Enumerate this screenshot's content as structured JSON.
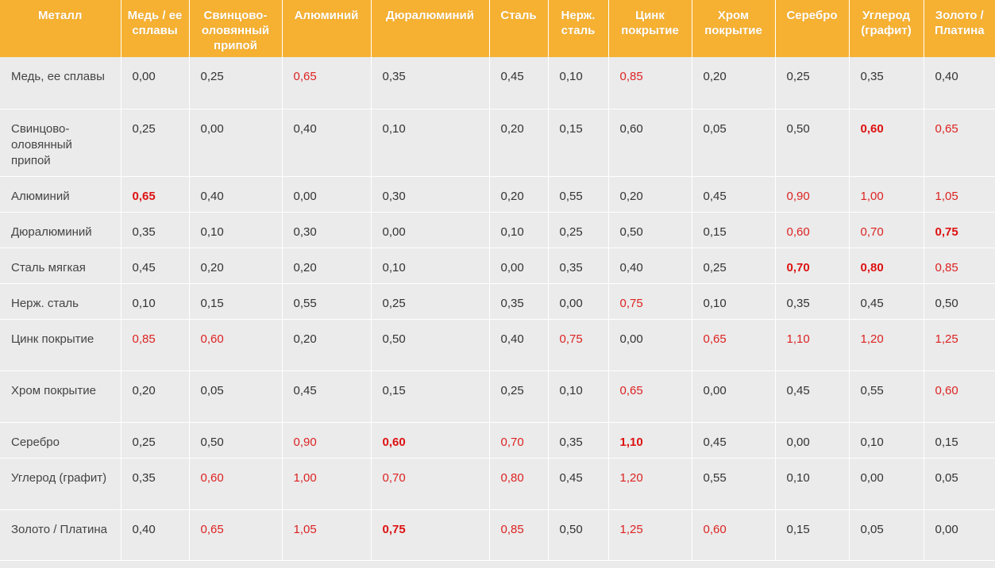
{
  "table": {
    "headers": [
      "Металл",
      "Медь / ее сплавы",
      "Свинцово-оловянный припой",
      "Алюминий",
      "Дюралюминий",
      "Сталь",
      "Нерж. сталь",
      "Цинк покрытие",
      "Хром покрытие",
      "Серебро",
      "Углерод (графит)",
      "Золото / Платина"
    ],
    "rows": [
      {
        "metal": "Медь, ее сплавы",
        "values": [
          "0,00",
          "0,25",
          "0,65",
          "0,35",
          "0,45",
          "0,10",
          "0,85",
          "0,20",
          "0,25",
          "0,35",
          "0,40"
        ]
      },
      {
        "metal": "Свинцово-оловянный припой",
        "values": [
          "0,25",
          "0,00",
          "0,40",
          "0,10",
          "0,20",
          "0,15",
          "0,60",
          "0,05",
          "0,50",
          "0,60",
          "0,65"
        ]
      },
      {
        "metal": "Алюминий",
        "values": [
          "0,65",
          "0,40",
          "0,00",
          "0,30",
          "0,20",
          "0,55",
          "0,20",
          "0,45",
          "0,90",
          "1,00",
          "1,05"
        ]
      },
      {
        "metal": "Дюралюминий",
        "values": [
          "0,35",
          "0,10",
          "0,30",
          "0,00",
          "0,10",
          "0,25",
          "0,50",
          "0,15",
          "0,60",
          "0,70",
          "0,75"
        ]
      },
      {
        "metal": "Сталь мягкая",
        "values": [
          "0,45",
          "0,20",
          "0,20",
          "0,10",
          "0,00",
          "0,35",
          "0,40",
          "0,25",
          "0,70",
          "0,80",
          "0,85"
        ]
      },
      {
        "metal": "Нерж. сталь",
        "values": [
          "0,10",
          "0,15",
          "0,55",
          "0,25",
          "0,35",
          "0,00",
          "0,75",
          "0,10",
          "0,35",
          "0,45",
          "0,50"
        ]
      },
      {
        "metal": "Цинк покрытие",
        "values": [
          "0,85",
          "0,60",
          "0,20",
          "0,50",
          "0,40",
          "0,75",
          "0,00",
          "0,65",
          "1,10",
          "1,20",
          "1,25"
        ]
      },
      {
        "metal": "Хром покрытие",
        "values": [
          "0,20",
          "0,05",
          "0,45",
          "0,15",
          "0,25",
          "0,10",
          "0,65",
          "0,00",
          "0,45",
          "0,55",
          "0,60"
        ]
      },
      {
        "metal": "Серебро",
        "values": [
          "0,25",
          "0,50",
          "0,90",
          "0,60",
          "0,70",
          "0,35",
          "1,10",
          "0,45",
          "0,00",
          "0,10",
          "0,15"
        ]
      },
      {
        "metal": "Углерод (графит)",
        "values": [
          "0,35",
          "0,60",
          "1,00",
          "0,70",
          "0,80",
          "0,45",
          "1,20",
          "0,55",
          "0,10",
          "0,00",
          "0,05"
        ]
      },
      {
        "metal": "Золото / Платина",
        "values": [
          "0,40",
          "0,65",
          "1,05",
          "0,75",
          "0,85",
          "0,50",
          "1,25",
          "0,60",
          "0,15",
          "0,05",
          "0,00"
        ]
      }
    ]
  },
  "colors": {
    "header_bg": "#f6b132",
    "body_bg": "#ebebeb",
    "warning": "#dd2222"
  }
}
